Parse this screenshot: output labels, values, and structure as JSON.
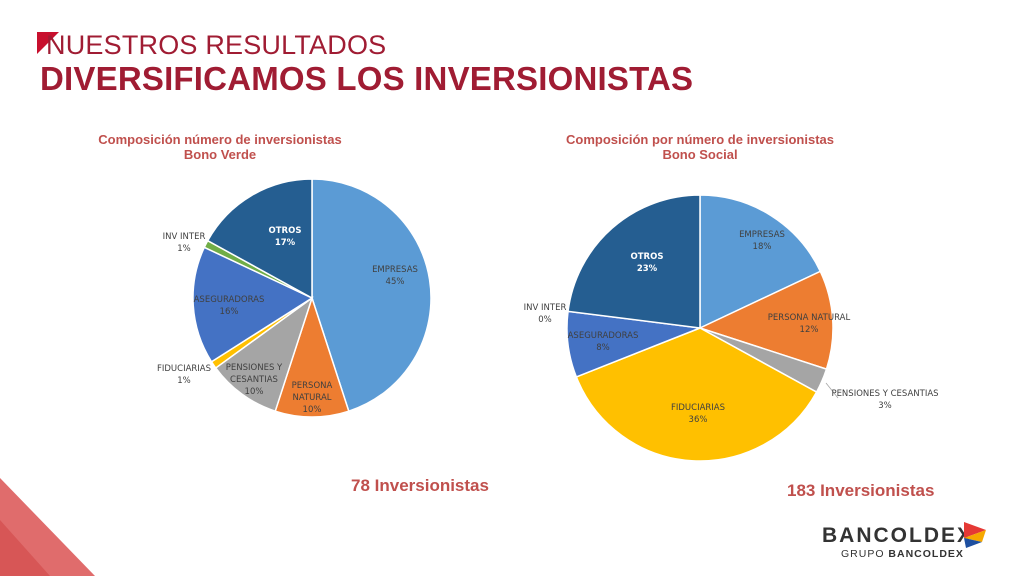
{
  "header": {
    "overline": "NUESTROS RESULTADOS",
    "title": "DIVERSIFICAMOS LOS INVERSIONISTAS"
  },
  "colors": {
    "brand_red": "#a01c33",
    "chart_title": "#c0504d",
    "empresas": "#5b9bd5",
    "persona_natural": "#ed7d31",
    "pensiones": "#a5a5a5",
    "fiduciarias": "#ffc000",
    "aseguradoras": "#4472c4",
    "inv_inter": "#70ad47",
    "otros": "#255e91"
  },
  "chart_data": [
    {
      "type": "pie",
      "title": "Composición número de inversionistas",
      "subtitle": "Bono Verde",
      "total_label": "78 Inversionistas",
      "slices": [
        {
          "name": "EMPRESAS",
          "value": 45,
          "label": "45%",
          "color": "#5b9bd5"
        },
        {
          "name": "PERSONA NATURAL",
          "value": 10,
          "label": "10%",
          "color": "#ed7d31"
        },
        {
          "name": "PENSIONES Y CESANTIAS",
          "value": 10,
          "label": "10%",
          "color": "#a5a5a5"
        },
        {
          "name": "FIDUCIARIAS",
          "value": 1,
          "label": "1%",
          "color": "#ffc000"
        },
        {
          "name": "ASEGURADORAS",
          "value": 16,
          "label": "16%",
          "color": "#4472c4"
        },
        {
          "name": "INV INTER",
          "value": 1,
          "label": "1%",
          "color": "#70ad47"
        },
        {
          "name": "OTROS",
          "value": 17,
          "label": "17%",
          "color": "#255e91"
        }
      ]
    },
    {
      "type": "pie",
      "title": "Composición por número de inversionistas",
      "subtitle": "Bono Social",
      "total_label": "183 Inversionistas",
      "slices": [
        {
          "name": "EMPRESAS",
          "value": 18,
          "label": "18%",
          "color": "#5b9bd5"
        },
        {
          "name": "PERSONA NATURAL",
          "value": 12,
          "label": "12%",
          "color": "#ed7d31"
        },
        {
          "name": "PENSIONES Y CESANTIAS",
          "value": 3,
          "label": "3%",
          "color": "#a5a5a5"
        },
        {
          "name": "FIDUCIARIAS",
          "value": 36,
          "label": "36%",
          "color": "#ffc000"
        },
        {
          "name": "ASEGURADORAS",
          "value": 8,
          "label": "8%",
          "color": "#4472c4"
        },
        {
          "name": "INV INTER",
          "value": 0,
          "label": "0%",
          "color": "#70ad47"
        },
        {
          "name": "OTROS",
          "value": 23,
          "label": "23%",
          "color": "#255e91"
        }
      ]
    }
  ],
  "logo": {
    "name": "BANCOLDEX",
    "sub_prefix": "GRUPO ",
    "sub_brand": "BANCOLDEX"
  }
}
